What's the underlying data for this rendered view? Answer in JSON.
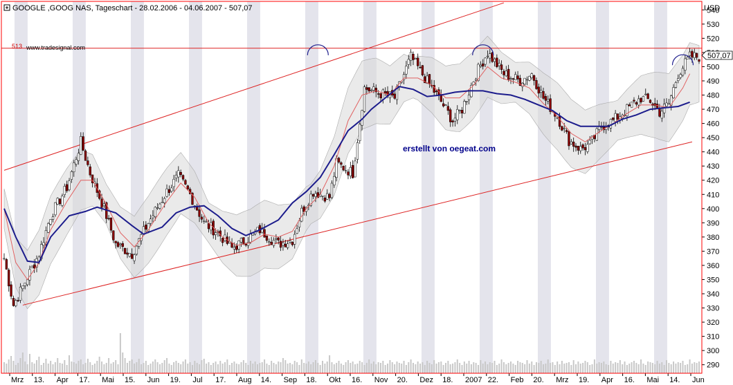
{
  "header": {
    "title": "GOOGLE ,GOOG NAS, Tageschart - 28.02.2006 - 04.06.2007 - 507,07",
    "currency": "USD",
    "credit": "www.tradesignal.com",
    "resistance_label": "513",
    "last_price_label": "507,07"
  },
  "annotation": "erstellt von oegeat.com",
  "colors": {
    "candle_up": "#ffffff",
    "candle_down": "#8b0000",
    "moving_average_long": "#1c1c8c",
    "moving_average_short": "#e06060",
    "trend_line": "#dd2222",
    "bollinger_fill": "#d8d8d8",
    "stripe": "#e4e4ec",
    "volume": "#c8c8c8",
    "arc": "#1c1c8c"
  },
  "chart_data": {
    "type": "candlestick",
    "y_axis": {
      "ticks": [
        290,
        300,
        310,
        320,
        330,
        340,
        350,
        360,
        370,
        380,
        390,
        400,
        410,
        420,
        430,
        440,
        450,
        460,
        470,
        480,
        490,
        500,
        510,
        520,
        530,
        540
      ],
      "range": [
        284,
        546
      ],
      "side": "right"
    },
    "x_axis": {
      "tick_labels": [
        "Mrz",
        "13.",
        "Apr",
        "17.",
        "Mai",
        "15.",
        "Jun",
        "19.",
        "Jul",
        "17.",
        "Aug",
        "14.",
        "Sep",
        "18.",
        "Okt",
        "16.",
        "Nov",
        "20.",
        "Dez",
        "18.",
        "2007",
        "22.",
        "Feb",
        "20.",
        "Mrz",
        "19.",
        "Apr",
        "16.",
        "Mai",
        "14.",
        "Jun"
      ]
    },
    "resistance_level": 513,
    "last_price": 507.07,
    "lines": {
      "upper_trend": [
        [
          0,
          427
        ],
        [
          215,
          545
        ]
      ],
      "support_trend": [
        [
          8,
          332
        ],
        [
          296,
          447
        ]
      ],
      "resistance": [
        [
          0,
          513
        ],
        [
          300,
          513
        ]
      ]
    },
    "arcs": [
      {
        "day": 135,
        "price": 512
      },
      {
        "day": 206,
        "price": 512
      },
      {
        "day": 292,
        "price": 505
      }
    ],
    "anchors": [
      [
        0,
        365
      ],
      [
        4,
        332
      ],
      [
        8,
        345
      ],
      [
        15,
        368
      ],
      [
        20,
        395
      ],
      [
        27,
        415
      ],
      [
        33,
        447
      ],
      [
        37,
        425
      ],
      [
        43,
        400
      ],
      [
        48,
        375
      ],
      [
        55,
        368
      ],
      [
        62,
        390
      ],
      [
        70,
        412
      ],
      [
        75,
        423
      ],
      [
        80,
        410
      ],
      [
        86,
        390
      ],
      [
        92,
        383
      ],
      [
        98,
        372
      ],
      [
        104,
        378
      ],
      [
        110,
        385
      ],
      [
        118,
        375
      ],
      [
        124,
        378
      ],
      [
        128,
        398
      ],
      [
        133,
        412
      ],
      [
        140,
        408
      ],
      [
        143,
        432
      ],
      [
        150,
        425
      ],
      [
        155,
        485
      ],
      [
        160,
        482
      ],
      [
        168,
        478
      ],
      [
        175,
        507
      ],
      [
        181,
        492
      ],
      [
        187,
        478
      ],
      [
        193,
        462
      ],
      [
        197,
        470
      ],
      [
        203,
        495
      ],
      [
        208,
        510
      ],
      [
        215,
        495
      ],
      [
        222,
        490
      ],
      [
        227,
        495
      ],
      [
        232,
        478
      ],
      [
        238,
        465
      ],
      [
        243,
        448
      ],
      [
        248,
        442
      ],
      [
        252,
        445
      ],
      [
        257,
        458
      ],
      [
        262,
        462
      ],
      [
        268,
        470
      ],
      [
        274,
        478
      ],
      [
        278,
        476
      ],
      [
        282,
        468
      ],
      [
        286,
        474
      ],
      [
        290,
        495
      ],
      [
        295,
        507
      ]
    ],
    "ma_long": [
      [
        0,
        400
      ],
      [
        5,
        380
      ],
      [
        10,
        363
      ],
      [
        15,
        362
      ],
      [
        20,
        380
      ],
      [
        28,
        395
      ],
      [
        35,
        398
      ],
      [
        40,
        401
      ],
      [
        48,
        397
      ],
      [
        55,
        388
      ],
      [
        60,
        382
      ],
      [
        68,
        387
      ],
      [
        74,
        397
      ],
      [
        80,
        401
      ],
      [
        86,
        402
      ],
      [
        92,
        395
      ],
      [
        98,
        386
      ],
      [
        104,
        381
      ],
      [
        110,
        385
      ],
      [
        118,
        392
      ],
      [
        124,
        404
      ],
      [
        130,
        412
      ],
      [
        136,
        422
      ],
      [
        142,
        438
      ],
      [
        148,
        455
      ],
      [
        154,
        463
      ],
      [
        158,
        470
      ],
      [
        164,
        478
      ],
      [
        170,
        486
      ],
      [
        176,
        484
      ],
      [
        182,
        479
      ],
      [
        188,
        480
      ],
      [
        194,
        482
      ],
      [
        200,
        483
      ],
      [
        206,
        483
      ],
      [
        212,
        481
      ],
      [
        218,
        480
      ],
      [
        224,
        477
      ],
      [
        230,
        473
      ],
      [
        236,
        469
      ],
      [
        242,
        462
      ],
      [
        248,
        458
      ],
      [
        254,
        458
      ],
      [
        260,
        458
      ],
      [
        266,
        463
      ],
      [
        272,
        466
      ],
      [
        278,
        470
      ],
      [
        284,
        471
      ],
      [
        290,
        472
      ],
      [
        295,
        475
      ]
    ],
    "ma_short": [
      [
        0,
        400
      ],
      [
        5,
        362
      ],
      [
        10,
        350
      ],
      [
        15,
        362
      ],
      [
        20,
        385
      ],
      [
        27,
        405
      ],
      [
        33,
        420
      ],
      [
        38,
        420
      ],
      [
        44,
        403
      ],
      [
        50,
        383
      ],
      [
        56,
        373
      ],
      [
        62,
        385
      ],
      [
        70,
        405
      ],
      [
        76,
        418
      ],
      [
        82,
        408
      ],
      [
        88,
        390
      ],
      [
        94,
        380
      ],
      [
        100,
        374
      ],
      [
        106,
        376
      ],
      [
        112,
        382
      ],
      [
        118,
        380
      ],
      [
        124,
        384
      ],
      [
        130,
        400
      ],
      [
        136,
        410
      ],
      [
        142,
        430
      ],
      [
        148,
        462
      ],
      [
        154,
        480
      ],
      [
        160,
        483
      ],
      [
        166,
        480
      ],
      [
        172,
        492
      ],
      [
        178,
        492
      ],
      [
        184,
        487
      ],
      [
        190,
        478
      ],
      [
        196,
        478
      ],
      [
        202,
        487
      ],
      [
        208,
        500
      ],
      [
        214,
        492
      ],
      [
        220,
        489
      ],
      [
        226,
        485
      ],
      [
        232,
        474
      ],
      [
        238,
        465
      ],
      [
        244,
        453
      ],
      [
        250,
        447
      ],
      [
        256,
        454
      ],
      [
        262,
        460
      ],
      [
        268,
        467
      ],
      [
        274,
        473
      ],
      [
        280,
        473
      ],
      [
        286,
        471
      ],
      [
        292,
        485
      ],
      [
        295,
        495
      ]
    ],
    "volume_bars": [
      16,
      14,
      20,
      25,
      18,
      12,
      15,
      22,
      30,
      17,
      13,
      28,
      16,
      14,
      19,
      24,
      12,
      15,
      21,
      14,
      18,
      13,
      16,
      22,
      15,
      14,
      19,
      12,
      26,
      17,
      16,
      14,
      18,
      20,
      13,
      15,
      21,
      16,
      12,
      14,
      18,
      24,
      17,
      13,
      15,
      22,
      14,
      16,
      19,
      13,
      58,
      30,
      22,
      15,
      18,
      20,
      14,
      16,
      21,
      13,
      15,
      18,
      12,
      14,
      17,
      20,
      16,
      13,
      15,
      19,
      22,
      14,
      12,
      16,
      18,
      15,
      13,
      17,
      20,
      14,
      16,
      12,
      18,
      15,
      13,
      19,
      21,
      14,
      16,
      12,
      15,
      17,
      13,
      18,
      14,
      16,
      20,
      12,
      15,
      17,
      14,
      13,
      16,
      19,
      15,
      12,
      18,
      14,
      17,
      13,
      15,
      16,
      20,
      14,
      12,
      18,
      15,
      13,
      17,
      16,
      22,
      19,
      14,
      15,
      13,
      18,
      16,
      12,
      20,
      15,
      14,
      17,
      13,
      16,
      19,
      15,
      12,
      18,
      14,
      17,
      26,
      16,
      13,
      15,
      18,
      14,
      12,
      16,
      19,
      15,
      17,
      13,
      14,
      18,
      16,
      12,
      15,
      20,
      14,
      17,
      13,
      16,
      15,
      18,
      12,
      14,
      19,
      16,
      13,
      17,
      15,
      14,
      18,
      12,
      16,
      20,
      15,
      13,
      17,
      14,
      16,
      12,
      18,
      15,
      13,
      19,
      14,
      16,
      17,
      12,
      15,
      18,
      13,
      14,
      16,
      20,
      15,
      12,
      17,
      14,
      18,
      13,
      16,
      15,
      12,
      19,
      14,
      17,
      13,
      16,
      15,
      18,
      12,
      14,
      20,
      16,
      13,
      15,
      17,
      14,
      12,
      18,
      16,
      15,
      13,
      19,
      14,
      17,
      12,
      16,
      15,
      18,
      13,
      14,
      20,
      15,
      16,
      12,
      17,
      13,
      18,
      14,
      15,
      16,
      12,
      19,
      13,
      17,
      14,
      15,
      18,
      16,
      12,
      13,
      20,
      14,
      16,
      15,
      17,
      13,
      12,
      18,
      14,
      16,
      15,
      19,
      13,
      17,
      12,
      14,
      16,
      18,
      15,
      13,
      20,
      14,
      12,
      17,
      16,
      15,
      13,
      18,
      14,
      16,
      12,
      19,
      15,
      13,
      17,
      14,
      16,
      15,
      18,
      12,
      13,
      20,
      14,
      16,
      15,
      17,
      22,
      18
    ]
  }
}
